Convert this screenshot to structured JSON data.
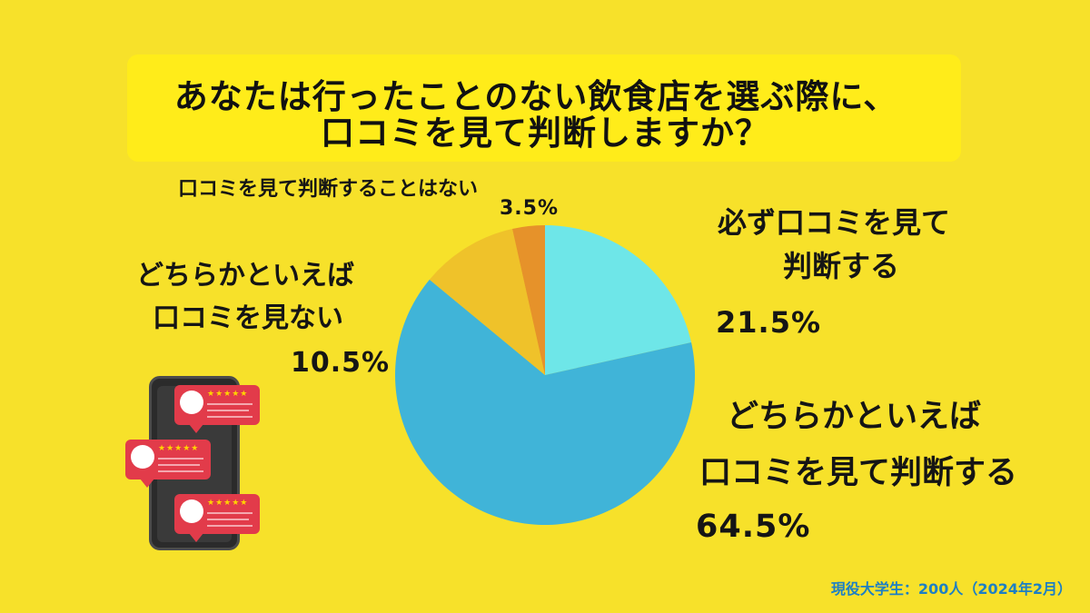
{
  "title": {
    "line1": "あなたは行ったことのない飲食店を選ぶ際に、",
    "line2": "口コミを見て判断しますか？"
  },
  "labels": {
    "always_l1": "必ず口コミを見て",
    "always_l2": "判断する",
    "always_pct": "21.5%",
    "rather_yes_l1": "どちらかといえば",
    "rather_yes_l2": "口コミを見て判断する",
    "rather_yes_pct": "64.5%",
    "rather_no_l1": "どちらかといえば",
    "rather_no_l2": "口コミを見ない",
    "rather_no_pct": "10.5%",
    "never_l1": "口コミを見て判断することはない",
    "never_pct": "3.5%"
  },
  "source": "現役大学生：200人（2024年2月）",
  "review_stars": "★★★★★",
  "chart_data": {
    "type": "pie",
    "title": "あなたは行ったことのない飲食店を選ぶ際に、口コミを見て判断しますか？",
    "categories": [
      "必ず口コミを見て判断する",
      "どちらかといえば口コミを見て判断する",
      "どちらかといえば口コミを見ない",
      "口コミを見て判断することはない"
    ],
    "values": [
      21.5,
      64.5,
      10.5,
      3.5
    ],
    "unit": "%",
    "colors": [
      "#6ee6e8",
      "#40b4d8",
      "#efc22a",
      "#e6922a"
    ],
    "start": "12 o'clock, clockwise"
  }
}
